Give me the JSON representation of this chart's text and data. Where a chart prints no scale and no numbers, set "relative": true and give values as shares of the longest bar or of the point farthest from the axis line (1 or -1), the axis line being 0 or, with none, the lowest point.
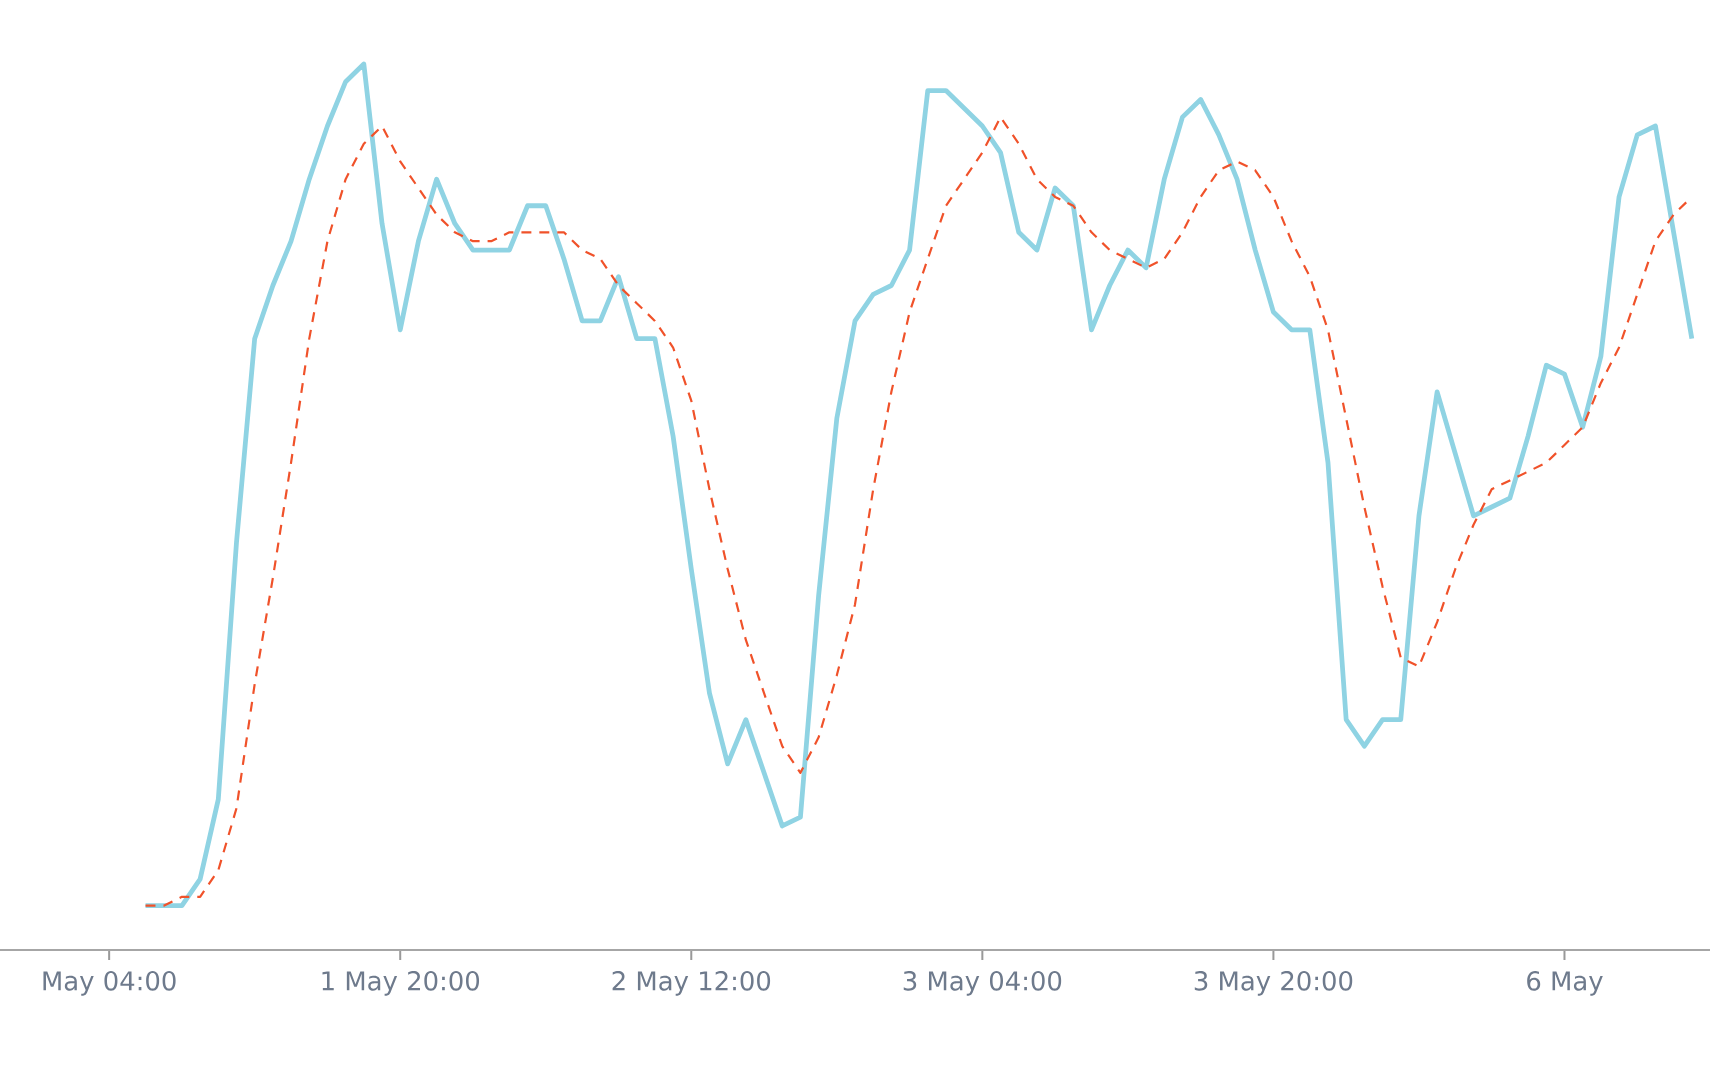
{
  "chart_data": {
    "type": "line",
    "relative": true,
    "marker": "none",
    "categories": [
      "May 04:00",
      null,
      null,
      null,
      null,
      null,
      null,
      null,
      null,
      null,
      null,
      null,
      null,
      null,
      null,
      null,
      "1 May 20:00",
      null,
      null,
      null,
      null,
      null,
      null,
      null,
      null,
      null,
      null,
      null,
      null,
      null,
      null,
      null,
      "2 May 12:00",
      null,
      null,
      null,
      null,
      null,
      null,
      null,
      null,
      null,
      null,
      null,
      null,
      null,
      null,
      null,
      "3 May 04:00",
      null,
      null,
      null,
      null,
      null,
      null,
      null,
      null,
      null,
      null,
      null,
      null,
      null,
      null,
      null,
      "3 May 20:00",
      null,
      null,
      null,
      null,
      null,
      null,
      null,
      null,
      null,
      null,
      null,
      null,
      null,
      null,
      null,
      "6 May",
      null,
      null,
      null,
      null,
      null,
      null,
      null
    ],
    "series": [
      {
        "color": "#8fd3e3",
        "line_style": "solid",
        "values": [
          null,
          null,
          0.05,
          0.05,
          0.05,
          0.08,
          0.17,
          0.46,
          0.69,
          0.75,
          0.8,
          0.87,
          0.93,
          0.98,
          1.0,
          0.82,
          0.7,
          0.8,
          0.87,
          0.82,
          0.79,
          0.79,
          0.79,
          0.84,
          0.84,
          0.78,
          0.71,
          0.71,
          0.76,
          0.69,
          0.69,
          0.58,
          0.43,
          0.29,
          0.21,
          0.26,
          0.2,
          0.14,
          0.15,
          0.4,
          0.6,
          0.71,
          0.74,
          0.75,
          0.79,
          0.97,
          0.97,
          0.95,
          0.93,
          0.9,
          0.81,
          0.79,
          0.86,
          0.84,
          0.7,
          0.75,
          0.79,
          0.77,
          0.87,
          0.94,
          0.96,
          0.92,
          0.87,
          0.79,
          0.72,
          0.7,
          0.7,
          0.55,
          0.26,
          0.23,
          0.26,
          0.26,
          0.49,
          0.63,
          0.56,
          0.49,
          0.5,
          0.51,
          0.58,
          0.66,
          0.65,
          0.59,
          0.67,
          0.85,
          0.92,
          0.93,
          0.81,
          0.69
        ]
      },
      {
        "color": "#f0522a",
        "line_style": "dashed",
        "values": [
          null,
          null,
          0.05,
          0.05,
          0.06,
          0.06,
          0.09,
          0.16,
          0.3,
          0.42,
          0.55,
          0.69,
          0.8,
          0.87,
          0.91,
          0.93,
          0.89,
          0.86,
          0.83,
          0.81,
          0.8,
          0.8,
          0.81,
          0.81,
          0.81,
          0.81,
          0.79,
          0.78,
          0.75,
          0.73,
          0.71,
          0.68,
          0.62,
          0.52,
          0.43,
          0.35,
          0.29,
          0.23,
          0.2,
          0.24,
          0.31,
          0.39,
          0.52,
          0.63,
          0.72,
          0.78,
          0.84,
          0.87,
          0.9,
          0.94,
          0.91,
          0.87,
          0.85,
          0.84,
          0.81,
          0.79,
          0.78,
          0.77,
          0.78,
          0.81,
          0.85,
          0.88,
          0.89,
          0.88,
          0.85,
          0.8,
          0.76,
          0.7,
          0.6,
          0.5,
          0.41,
          0.33,
          0.32,
          0.37,
          0.43,
          0.48,
          0.52,
          0.53,
          0.54,
          0.55,
          0.57,
          0.59,
          0.64,
          0.68,
          0.74,
          0.8,
          0.83,
          0.85
        ]
      }
    ]
  }
}
